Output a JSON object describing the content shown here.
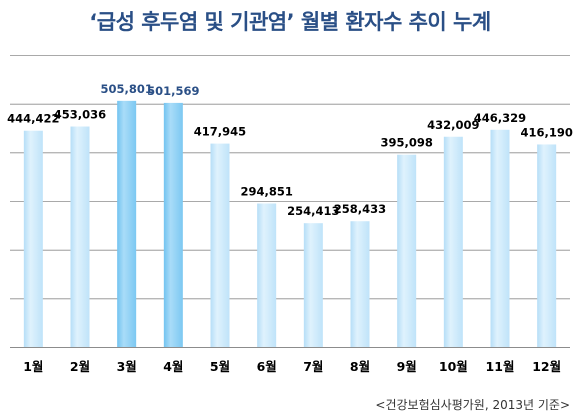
{
  "chart_data": {
    "type": "bar",
    "title": "‘급성 후두염 및 기관염’ 월별 환자수 추이 누계",
    "categories": [
      "1월",
      "2월",
      "3월",
      "4월",
      "5월",
      "6월",
      "7월",
      "8월",
      "9월",
      "10월",
      "11월",
      "12월"
    ],
    "series": [
      {
        "values": [
          444422,
          453036,
          505801,
          501569,
          417945,
          294851,
          254413,
          258433,
          395098,
          432009,
          446329,
          416190
        ]
      }
    ],
    "data_labels": [
      "444,422",
      "453,036",
      "505,801",
      "501,569",
      "417,945",
      "294,851",
      "254,413",
      "258,433",
      "395,098",
      "432,009",
      "446,329",
      "416,190"
    ],
    "highlighted_categories": [
      "3월",
      "4월"
    ],
    "ylim": [
      0,
      600000
    ],
    "grid": true,
    "y_tick_labels_shown": false,
    "colors": {
      "bar": "#c9e8fb",
      "bar_highlight": "#8ed2f6",
      "label": "#000000",
      "label_highlight": "#2a4f86",
      "title": "#2a4f86",
      "grid": "#8c8c8c"
    }
  },
  "source_note": "<건강보험심사평가원, 2013년 기준>"
}
